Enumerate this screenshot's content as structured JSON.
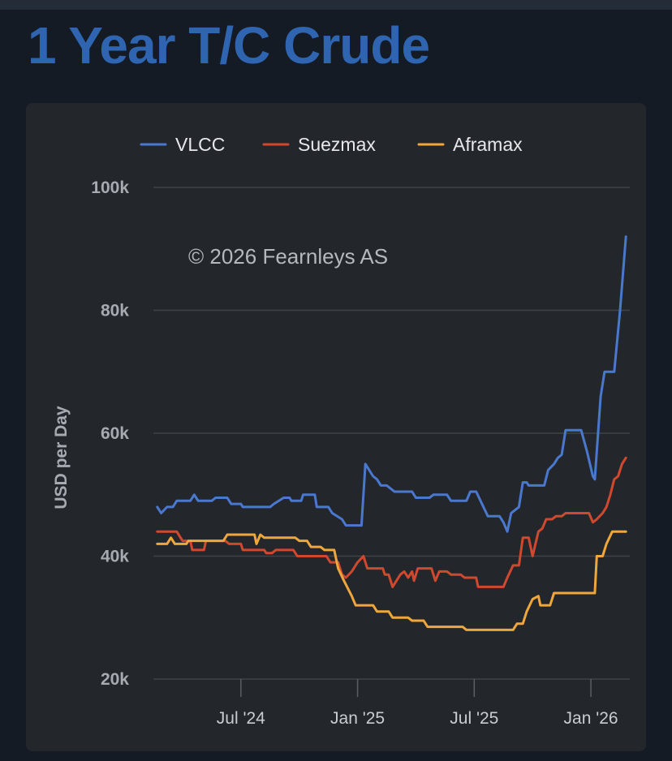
{
  "title": "1 Year T/C Crude",
  "chart_data": {
    "type": "line",
    "ylabel": "USD per Day",
    "ylim": [
      20000,
      100000
    ],
    "yticks": [
      {
        "value": 20000,
        "label": "20k"
      },
      {
        "value": 40000,
        "label": "40k"
      },
      {
        "value": 60000,
        "label": "60k"
      },
      {
        "value": 80000,
        "label": "80k"
      },
      {
        "value": 100000,
        "label": "100k"
      }
    ],
    "xlim": [
      -4.5,
      20.0
    ],
    "xticks": [
      {
        "value": 0,
        "label": "Jul '24"
      },
      {
        "value": 6,
        "label": "Jan '25"
      },
      {
        "value": 12,
        "label": "Jul '25"
      },
      {
        "value": 18,
        "label": "Jan '26"
      }
    ],
    "x_unit": "months since Jul 2024",
    "legend_position": "top",
    "watermark": "© 2026 Fearnleys AS",
    "series": [
      {
        "name": "VLCC",
        "color": "#4a78cf",
        "points": [
          [
            -4.3,
            48000
          ],
          [
            -4.1,
            47000
          ],
          [
            -3.8,
            48000
          ],
          [
            -3.5,
            48000
          ],
          [
            -3.3,
            49000
          ],
          [
            -2.6,
            49000
          ],
          [
            -2.4,
            50000
          ],
          [
            -2.2,
            49000
          ],
          [
            -1.5,
            49000
          ],
          [
            -1.3,
            49500
          ],
          [
            -0.7,
            49500
          ],
          [
            -0.5,
            48500
          ],
          [
            0.0,
            48500
          ],
          [
            0.1,
            48000
          ],
          [
            1.5,
            48000
          ],
          [
            1.7,
            48500
          ],
          [
            2.2,
            49500
          ],
          [
            2.5,
            49500
          ],
          [
            2.6,
            49000
          ],
          [
            3.1,
            49000
          ],
          [
            3.2,
            50000
          ],
          [
            3.8,
            50000
          ],
          [
            3.9,
            48000
          ],
          [
            4.5,
            48000
          ],
          [
            4.7,
            47000
          ],
          [
            5.2,
            46000
          ],
          [
            5.4,
            45000
          ],
          [
            6.2,
            45000
          ],
          [
            6.4,
            55000
          ],
          [
            6.8,
            53000
          ],
          [
            7.0,
            52500
          ],
          [
            7.2,
            51500
          ],
          [
            7.5,
            51500
          ],
          [
            7.7,
            51000
          ],
          [
            7.9,
            50500
          ],
          [
            8.8,
            50500
          ],
          [
            9.0,
            49500
          ],
          [
            9.7,
            49500
          ],
          [
            9.9,
            50000
          ],
          [
            10.6,
            50000
          ],
          [
            10.8,
            49000
          ],
          [
            11.6,
            49000
          ],
          [
            11.8,
            50500
          ],
          [
            12.1,
            50500
          ],
          [
            12.4,
            48500
          ],
          [
            12.7,
            46500
          ],
          [
            13.3,
            46500
          ],
          [
            13.5,
            45500
          ],
          [
            13.7,
            44000
          ],
          [
            13.9,
            47000
          ],
          [
            14.1,
            47500
          ],
          [
            14.3,
            48000
          ],
          [
            14.5,
            52000
          ],
          [
            14.7,
            52000
          ],
          [
            14.8,
            51500
          ],
          [
            15.6,
            51500
          ],
          [
            15.8,
            54000
          ],
          [
            16.1,
            55000
          ],
          [
            16.3,
            56000
          ],
          [
            16.5,
            56500
          ],
          [
            16.7,
            60500
          ],
          [
            17.5,
            60500
          ],
          [
            17.8,
            57000
          ],
          [
            18.1,
            53000
          ],
          [
            18.2,
            52500
          ],
          [
            18.5,
            66000
          ],
          [
            18.7,
            70000
          ],
          [
            19.2,
            70000
          ],
          [
            19.5,
            80000
          ],
          [
            19.7,
            88000
          ],
          [
            19.8,
            92000
          ]
        ]
      },
      {
        "name": "Suezmax",
        "color": "#d0482e",
        "points": [
          [
            -4.3,
            44000
          ],
          [
            -3.3,
            44000
          ],
          [
            -3.1,
            43000
          ],
          [
            -3.0,
            42500
          ],
          [
            -2.6,
            42500
          ],
          [
            -2.5,
            41000
          ],
          [
            -1.9,
            41000
          ],
          [
            -1.8,
            42500
          ],
          [
            -0.8,
            42500
          ],
          [
            -0.6,
            42000
          ],
          [
            0.0,
            42000
          ],
          [
            0.1,
            41000
          ],
          [
            1.2,
            41000
          ],
          [
            1.3,
            40500
          ],
          [
            1.6,
            40500
          ],
          [
            1.8,
            41000
          ],
          [
            2.7,
            41000
          ],
          [
            2.9,
            40000
          ],
          [
            4.4,
            40000
          ],
          [
            4.6,
            39000
          ],
          [
            5.0,
            39000
          ],
          [
            5.2,
            37000
          ],
          [
            5.4,
            36500
          ],
          [
            5.7,
            37500
          ],
          [
            6.0,
            39000
          ],
          [
            6.3,
            40000
          ],
          [
            6.5,
            38000
          ],
          [
            7.3,
            38000
          ],
          [
            7.4,
            37000
          ],
          [
            7.6,
            37000
          ],
          [
            7.8,
            35000
          ],
          [
            8.0,
            36000
          ],
          [
            8.2,
            37000
          ],
          [
            8.4,
            37500
          ],
          [
            8.6,
            36500
          ],
          [
            8.8,
            37500
          ],
          [
            8.9,
            36000
          ],
          [
            9.1,
            38000
          ],
          [
            9.8,
            38000
          ],
          [
            10.0,
            36000
          ],
          [
            10.2,
            37500
          ],
          [
            10.6,
            37500
          ],
          [
            10.8,
            37000
          ],
          [
            11.3,
            37000
          ],
          [
            11.5,
            36500
          ],
          [
            12.1,
            36500
          ],
          [
            12.2,
            35000
          ],
          [
            13.5,
            35000
          ],
          [
            13.7,
            36500
          ],
          [
            14.0,
            38500
          ],
          [
            14.3,
            38500
          ],
          [
            14.5,
            43000
          ],
          [
            14.8,
            43000
          ],
          [
            15.0,
            40000
          ],
          [
            15.3,
            44000
          ],
          [
            15.5,
            44500
          ],
          [
            15.7,
            46000
          ],
          [
            16.0,
            46000
          ],
          [
            16.2,
            46500
          ],
          [
            16.5,
            46500
          ],
          [
            16.7,
            47000
          ],
          [
            17.9,
            47000
          ],
          [
            18.1,
            45500
          ],
          [
            18.3,
            46000
          ],
          [
            18.6,
            47000
          ],
          [
            18.8,
            48000
          ],
          [
            19.0,
            50000
          ],
          [
            19.2,
            52500
          ],
          [
            19.4,
            53000
          ],
          [
            19.6,
            55000
          ],
          [
            19.8,
            56000
          ]
        ]
      },
      {
        "name": "Aframax",
        "color": "#efa63b",
        "points": [
          [
            -4.3,
            42000
          ],
          [
            -3.8,
            42000
          ],
          [
            -3.6,
            43000
          ],
          [
            -3.4,
            42000
          ],
          [
            -2.8,
            42000
          ],
          [
            -2.7,
            42500
          ],
          [
            -0.9,
            42500
          ],
          [
            -0.7,
            43500
          ],
          [
            0.7,
            43500
          ],
          [
            0.8,
            42000
          ],
          [
            1.0,
            43500
          ],
          [
            1.2,
            43000
          ],
          [
            2.8,
            43000
          ],
          [
            3.0,
            42500
          ],
          [
            3.4,
            42500
          ],
          [
            3.6,
            41500
          ],
          [
            4.1,
            41500
          ],
          [
            4.3,
            41000
          ],
          [
            4.8,
            41000
          ],
          [
            5.0,
            38000
          ],
          [
            5.3,
            36000
          ],
          [
            5.7,
            33500
          ],
          [
            5.9,
            32000
          ],
          [
            6.8,
            32000
          ],
          [
            7.0,
            31000
          ],
          [
            7.6,
            31000
          ],
          [
            7.8,
            30000
          ],
          [
            8.6,
            30000
          ],
          [
            8.8,
            29500
          ],
          [
            9.4,
            29500
          ],
          [
            9.6,
            28500
          ],
          [
            11.4,
            28500
          ],
          [
            11.6,
            28000
          ],
          [
            14.0,
            28000
          ],
          [
            14.2,
            29000
          ],
          [
            14.5,
            29000
          ],
          [
            14.7,
            31000
          ],
          [
            15.0,
            33000
          ],
          [
            15.3,
            33500
          ],
          [
            15.4,
            32000
          ],
          [
            15.9,
            32000
          ],
          [
            16.1,
            34000
          ],
          [
            17.6,
            34000
          ],
          [
            17.8,
            34000
          ],
          [
            18.2,
            34000
          ],
          [
            18.3,
            40000
          ],
          [
            18.6,
            40000
          ],
          [
            18.8,
            42000
          ],
          [
            19.1,
            44000
          ],
          [
            19.8,
            44000
          ]
        ]
      }
    ]
  }
}
